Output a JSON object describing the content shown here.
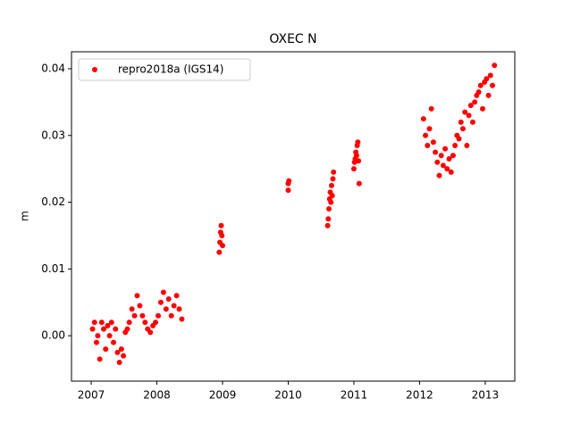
{
  "chart_data": {
    "type": "scatter",
    "title": "OXEC N",
    "ylabel": "m",
    "x": [
      2007.02,
      2007.05,
      2007.08,
      2007.1,
      2007.13,
      2007.16,
      2007.19,
      2007.22,
      2007.25,
      2007.28,
      2007.31,
      2007.34,
      2007.37,
      2007.4,
      2007.43,
      2007.46,
      2007.49,
      2007.52,
      2007.55,
      2007.58,
      2007.62,
      2007.66,
      2007.7,
      2007.74,
      2007.78,
      2007.82,
      2007.86,
      2007.9,
      2007.94,
      2007.98,
      2008.02,
      2008.06,
      2008.1,
      2008.14,
      2008.18,
      2008.22,
      2008.26,
      2008.3,
      2008.34,
      2008.38,
      2008.95,
      2008.96,
      2008.97,
      2008.98,
      2008.99,
      2009.0,
      2010.0,
      2010.0,
      2010.01,
      2010.6,
      2010.61,
      2010.62,
      2010.63,
      2010.64,
      2010.65,
      2010.66,
      2010.67,
      2010.68,
      2010.69,
      2011.0,
      2011.01,
      2011.02,
      2011.03,
      2011.04,
      2011.05,
      2011.06,
      2011.07,
      2011.08,
      2012.06,
      2012.09,
      2012.12,
      2012.15,
      2012.18,
      2012.21,
      2012.24,
      2012.27,
      2012.3,
      2012.33,
      2012.36,
      2012.39,
      2012.42,
      2012.45,
      2012.48,
      2012.51,
      2012.54,
      2012.57,
      2012.6,
      2012.63,
      2012.66,
      2012.69,
      2012.72,
      2012.75,
      2012.78,
      2012.81,
      2012.84,
      2012.87,
      2012.9,
      2012.93,
      2012.96,
      2012.99,
      2013.02,
      2013.05,
      2013.08,
      2013.11,
      2013.14
    ],
    "series": [
      {
        "name": "repro2018a (IGS14)",
        "color": "#ff0000",
        "values": [
          0.001,
          0.002,
          -0.001,
          0.0,
          -0.0035,
          0.002,
          0.001,
          -0.002,
          0.0015,
          0.0,
          0.002,
          -0.001,
          0.001,
          -0.0025,
          -0.004,
          -0.002,
          -0.003,
          0.0005,
          0.001,
          0.002,
          0.004,
          0.003,
          0.006,
          0.0045,
          0.003,
          0.002,
          0.001,
          0.0005,
          0.0015,
          0.002,
          0.003,
          0.005,
          0.0065,
          0.004,
          0.0055,
          0.003,
          0.0045,
          0.006,
          0.004,
          0.0025,
          0.0125,
          0.014,
          0.0155,
          0.0165,
          0.015,
          0.0135,
          0.0218,
          0.0228,
          0.0232,
          0.0165,
          0.0175,
          0.019,
          0.0205,
          0.0215,
          0.02,
          0.0225,
          0.021,
          0.0235,
          0.0245,
          0.025,
          0.026,
          0.0265,
          0.0275,
          0.027,
          0.0285,
          0.029,
          0.0262,
          0.0228,
          0.0325,
          0.03,
          0.0285,
          0.031,
          0.034,
          0.029,
          0.0275,
          0.026,
          0.024,
          0.027,
          0.0255,
          0.028,
          0.025,
          0.0265,
          0.0245,
          0.027,
          0.0285,
          0.03,
          0.0295,
          0.032,
          0.031,
          0.0335,
          0.0285,
          0.033,
          0.0345,
          0.032,
          0.035,
          0.036,
          0.0365,
          0.0375,
          0.034,
          0.038,
          0.0385,
          0.036,
          0.039,
          0.0375,
          0.0405
        ]
      }
    ],
    "xlim": [
      2006.7,
      2013.45
    ],
    "xticks": [
      2007,
      2008,
      2009,
      2010,
      2011,
      2012,
      2013
    ],
    "ylim": [
      -0.0068,
      0.04254
    ],
    "yticks": [
      {
        "value": 0,
        "label": "0.00"
      },
      0.01,
      0.02,
      0.03,
      0.04
    ],
    "legend": "upper left"
  }
}
